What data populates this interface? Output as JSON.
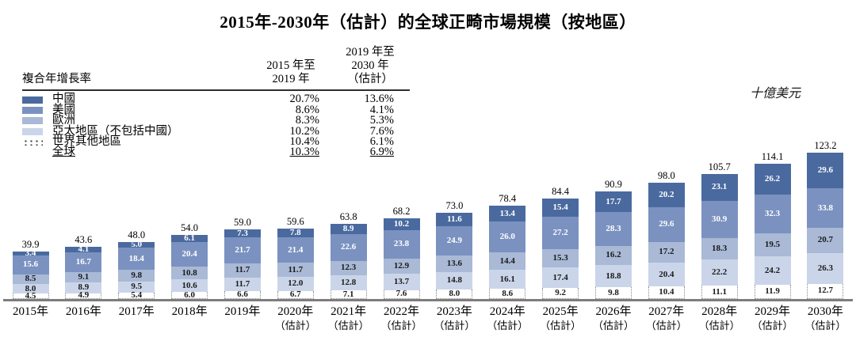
{
  "title": "2015年-2030年（估計）的全球正畸市場規模（按地區）",
  "unit_label": "十億美元",
  "cagr_table": {
    "row_header": "複合年增長率",
    "columns": [
      {
        "lines": [
          "2015 年至",
          "2019 年"
        ]
      },
      {
        "lines": [
          "2019 年至",
          "2030 年",
          "（估計）"
        ]
      }
    ],
    "rows": [
      {
        "label": "中國",
        "cagr_2015_2019": "20.7%",
        "cagr_2019_2030": "13.6%",
        "swatch": "solid",
        "underline": false
      },
      {
        "label": "美國",
        "cagr_2015_2019": "8.6%",
        "cagr_2019_2030": "4.1%",
        "swatch": "solid",
        "underline": false
      },
      {
        "label": "歐洲",
        "cagr_2015_2019": "8.3%",
        "cagr_2019_2030": "5.3%",
        "swatch": "solid",
        "underline": false
      },
      {
        "label": "亞太地區（不包括中國）",
        "cagr_2015_2019": "10.2%",
        "cagr_2019_2030": "7.6%",
        "swatch": "solid",
        "underline": false
      },
      {
        "label": "世界其他地區",
        "cagr_2015_2019": "10.4%",
        "cagr_2019_2030": "6.1%",
        "swatch": "dotted",
        "underline": false
      },
      {
        "label": "全球",
        "cagr_2015_2019": "10.3%",
        "cagr_2019_2030": "6.9%",
        "swatch": "none",
        "underline": true
      }
    ]
  },
  "chart_data": {
    "type": "bar",
    "stacked": true,
    "title": "2015年-2030年（估計）的全球正畸市場規模（按地區）",
    "ylabel": "十億美元",
    "legend_position": "top-left",
    "grid": false,
    "categories": [
      "2015年",
      "2016年",
      "2017年",
      "2018年",
      "2019年",
      "2020年",
      "2021年",
      "2022年",
      "2023年",
      "2024年",
      "2025年",
      "2026年",
      "2027年",
      "2028年",
      "2029年",
      "2030年"
    ],
    "estimate_label": "（估計）",
    "estimated_from_index": 5,
    "totals": [
      39.9,
      43.6,
      48.0,
      54.0,
      59.0,
      59.6,
      63.8,
      68.2,
      73.0,
      78.4,
      84.4,
      90.9,
      98.0,
      105.7,
      114.1,
      123.2
    ],
    "series": [
      {
        "name": "中國",
        "color": "#4a6a9f",
        "text_color": "#ffffff",
        "pattern": "solid",
        "values": [
          3.4,
          4.1,
          5.0,
          6.1,
          7.3,
          7.8,
          8.9,
          10.2,
          11.6,
          13.4,
          15.4,
          17.7,
          20.2,
          23.1,
          26.2,
          29.6
        ]
      },
      {
        "name": "美國",
        "color": "#7b92c0",
        "text_color": "#ffffff",
        "pattern": "solid",
        "values": [
          15.6,
          16.7,
          18.4,
          20.4,
          21.7,
          21.4,
          22.6,
          23.8,
          24.9,
          26.0,
          27.2,
          28.3,
          29.6,
          30.9,
          32.3,
          33.8
        ]
      },
      {
        "name": "歐洲",
        "color": "#a9b9d6",
        "text_color": "#1a1a1a",
        "pattern": "solid",
        "values": [
          8.5,
          9.1,
          9.8,
          10.8,
          11.7,
          11.7,
          12.3,
          12.9,
          13.6,
          14.4,
          15.3,
          16.2,
          17.2,
          18.3,
          19.5,
          20.7
        ]
      },
      {
        "name": "亞太地區（不包括中國）",
        "color": "#cbd5e9",
        "text_color": "#1a1a1a",
        "pattern": "solid",
        "values": [
          8.0,
          8.9,
          9.5,
          10.6,
          11.7,
          12.0,
          12.8,
          13.7,
          14.8,
          16.1,
          17.4,
          18.8,
          20.4,
          22.2,
          24.2,
          26.3
        ]
      },
      {
        "name": "世界其他地區",
        "color": "#ffffff",
        "text_color": "#1a1a1a",
        "pattern": "dotted",
        "values": [
          4.5,
          4.9,
          5.4,
          6.0,
          6.6,
          6.7,
          7.1,
          7.6,
          8.0,
          8.6,
          9.2,
          9.8,
          10.4,
          11.1,
          11.9,
          12.7
        ]
      }
    ]
  }
}
